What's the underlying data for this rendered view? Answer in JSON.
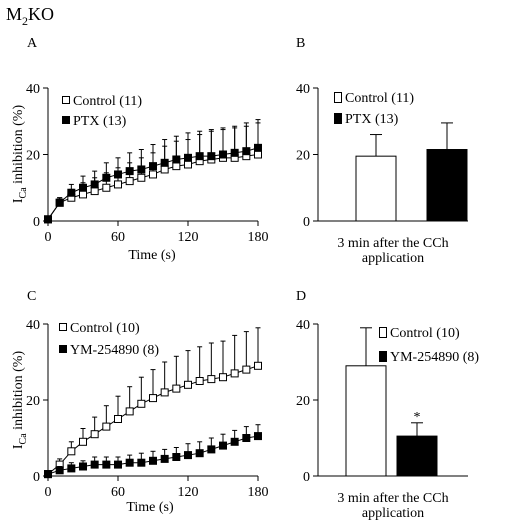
{
  "figure": {
    "genotype_main": "M",
    "genotype_sub": "2",
    "genotype_tail": "KO"
  },
  "chart_data": [
    {
      "panel": "A",
      "type": "line",
      "ylabel_main": "I",
      "ylabel_sub": "Ca",
      "ylabel_tail": " inhibition (%)",
      "xlabel": "Time (s)",
      "xlim": [
        0,
        180
      ],
      "ylim": [
        0,
        40
      ],
      "xticks": [
        0,
        60,
        120,
        180
      ],
      "yticks": [
        0,
        20,
        40
      ],
      "legend_position": "top-left",
      "series": [
        {
          "name": "Control (11)",
          "marker": "open-square",
          "x": [
            0,
            10,
            20,
            30,
            40,
            50,
            60,
            70,
            80,
            90,
            100,
            110,
            120,
            130,
            140,
            150,
            160,
            170,
            180
          ],
          "y": [
            0.5,
            5.5,
            7,
            8,
            9,
            10,
            11,
            12,
            13,
            14,
            15.5,
            16.5,
            17,
            18,
            18.5,
            19,
            19,
            19.5,
            20
          ],
          "err": [
            0.5,
            1.5,
            2.5,
            3.5,
            4,
            4.5,
            5,
            5.5,
            6,
            6.5,
            7,
            7.5,
            7.5,
            8,
            8.5,
            8.5,
            9,
            9,
            9.5
          ]
        },
        {
          "name": "PTX (13)",
          "marker": "filled-square",
          "x": [
            0,
            10,
            20,
            30,
            40,
            50,
            60,
            70,
            80,
            90,
            100,
            110,
            120,
            130,
            140,
            150,
            160,
            170,
            180
          ],
          "y": [
            0.5,
            5.5,
            8.5,
            10,
            11,
            13,
            14,
            15,
            15.5,
            16.5,
            17.5,
            18.5,
            19,
            19.5,
            19.5,
            20,
            20.5,
            21,
            22
          ],
          "err": [
            0.5,
            1.5,
            2.5,
            3.5,
            4,
            4.5,
            5,
            5.5,
            6,
            6.5,
            7,
            7,
            7.5,
            7.5,
            8,
            8,
            8,
            8.5,
            8.5
          ]
        }
      ]
    },
    {
      "panel": "B",
      "type": "bar",
      "ylim": [
        0,
        40
      ],
      "yticks": [
        0,
        20,
        40
      ],
      "categories": [
        "Control (11)",
        "PTX (13)"
      ],
      "values": [
        19.5,
        21.5
      ],
      "err": [
        6.5,
        8
      ],
      "fills": [
        "#ffffff",
        "#000000"
      ],
      "xlabel_line1": "3 min after the CCh",
      "xlabel_line2": "application",
      "legend_position": "top-left"
    },
    {
      "panel": "C",
      "type": "line",
      "ylabel_main": "I",
      "ylabel_sub": "Ca",
      "ylabel_tail": " inhibition (%)",
      "xlabel": "Time (s)",
      "xlim": [
        0,
        180
      ],
      "ylim": [
        0,
        40
      ],
      "xticks": [
        0,
        60,
        120,
        180
      ],
      "yticks": [
        0,
        20,
        40
      ],
      "legend_position": "top-left",
      "series": [
        {
          "name": "Control (10)",
          "marker": "open-square",
          "x": [
            0,
            10,
            20,
            30,
            40,
            50,
            60,
            70,
            80,
            90,
            100,
            110,
            120,
            130,
            140,
            150,
            160,
            170,
            180
          ],
          "y": [
            0.5,
            3,
            6.5,
            9,
            11,
            13,
            15,
            17,
            19,
            20.5,
            22,
            23,
            24,
            25,
            25.5,
            26,
            27,
            28,
            29
          ],
          "err": [
            0.5,
            1.5,
            2.5,
            3.5,
            4.5,
            5.5,
            6,
            6.5,
            7,
            7.5,
            8,
            8.5,
            9,
            9,
            9.5,
            9.5,
            10,
            10,
            10
          ]
        },
        {
          "name": "YM-254890 (8)",
          "marker": "filled-square",
          "x": [
            0,
            10,
            20,
            30,
            40,
            50,
            60,
            70,
            80,
            90,
            100,
            110,
            120,
            130,
            140,
            150,
            160,
            170,
            180
          ],
          "y": [
            0.5,
            1.5,
            2,
            2.5,
            3,
            3,
            3,
            3.5,
            3.5,
            4,
            4.5,
            5,
            5.5,
            6,
            7,
            8,
            9,
            10,
            10.5
          ],
          "err": [
            0.5,
            1,
            1.5,
            1.5,
            2,
            2,
            2,
            2,
            2.5,
            2.5,
            2.5,
            2.5,
            3,
            3,
            3,
            3,
            3,
            3,
            3
          ]
        }
      ]
    },
    {
      "panel": "D",
      "type": "bar",
      "ylim": [
        0,
        40
      ],
      "yticks": [
        0,
        20,
        40
      ],
      "categories": [
        "Control (10)",
        "YM-254890 (8)"
      ],
      "values": [
        29,
        10.5
      ],
      "err": [
        10,
        3.5
      ],
      "fills": [
        "#ffffff",
        "#000000"
      ],
      "annotation": "*",
      "xlabel_line1": "3 min after the CCh",
      "xlabel_line2": "application",
      "legend_position": "top-right"
    }
  ]
}
